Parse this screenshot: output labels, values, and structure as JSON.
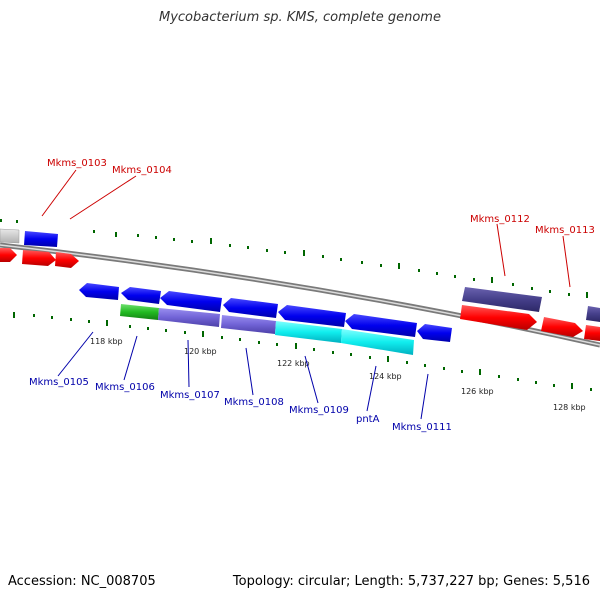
{
  "title": "Mycobacterium sp. KMS, complete genome",
  "footer": {
    "accession": "Accession: NC_008705",
    "summary": "Topology: circular; Length: 5,737,227 bp; Genes: 5,516"
  },
  "colors": {
    "upper_strand_label": "#cc0000",
    "lower_strand_label": "#0000aa",
    "blue_gene": "#0000ee",
    "red_gene": "#ff0000",
    "tick": "#006600",
    "backbone": "#888888"
  },
  "scale_labels": [
    "118 kbp",
    "120 kbp",
    "122 kbp",
    "124 kbp",
    "126 kbp",
    "128 kbp"
  ],
  "gene_labels": {
    "top": [
      "Mkms_0103",
      "Mkms_0104",
      "Mkms_0112",
      "Mkms_0113"
    ],
    "bottom": [
      "Mkms_0105",
      "Mkms_0106",
      "Mkms_0107",
      "Mkms_0108",
      "Mkms_0109",
      "pntA",
      "Mkms_0111"
    ]
  }
}
